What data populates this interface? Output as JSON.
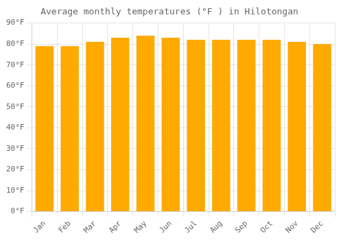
{
  "chart_data": {
    "type": "bar",
    "title": "Average monthly temperatures (°F ) in Hilotongan",
    "categories": [
      "Jan",
      "Feb",
      "Mar",
      "Apr",
      "May",
      "Jun",
      "Jul",
      "Aug",
      "Sep",
      "Oct",
      "Nov",
      "Dec"
    ],
    "values": [
      79,
      79,
      81,
      83,
      84,
      83,
      82,
      82,
      82,
      82,
      81,
      80
    ],
    "color": "#FFAA00",
    "ylim": [
      0,
      90
    ],
    "yticks": [
      {
        "value": 0,
        "label": "0°F"
      },
      {
        "value": 10,
        "label": "10°F"
      },
      {
        "value": 20,
        "label": "20°F"
      },
      {
        "value": 30,
        "label": "30°F"
      },
      {
        "value": 40,
        "label": "40°F"
      },
      {
        "value": 50,
        "label": "50°F"
      },
      {
        "value": 60,
        "label": "60°F"
      },
      {
        "value": 70,
        "label": "70°F"
      },
      {
        "value": 80,
        "label": "80°F"
      },
      {
        "value": 90,
        "label": "90°F"
      }
    ],
    "grid": true
  }
}
